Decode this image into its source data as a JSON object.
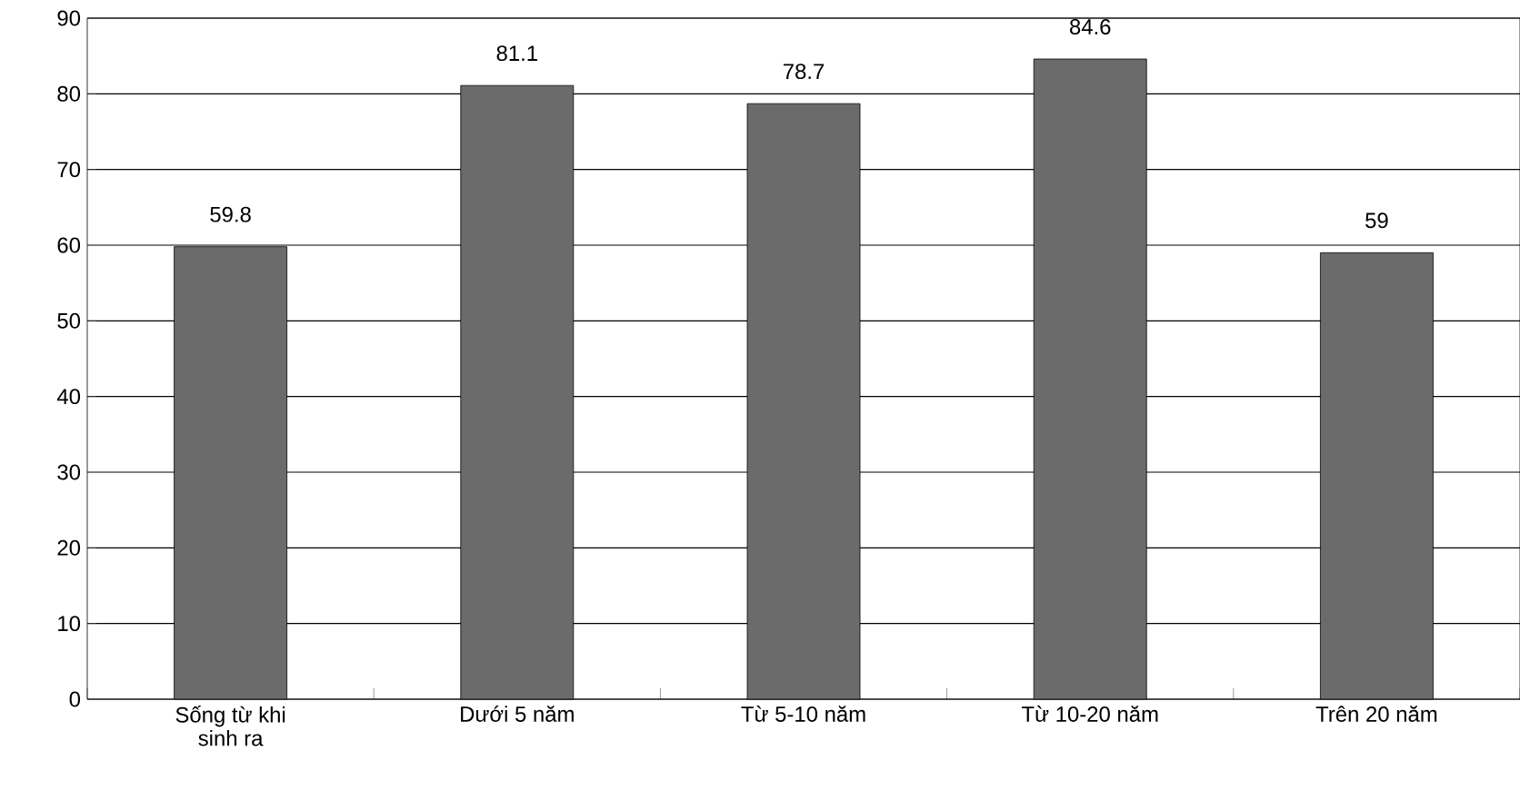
{
  "chart_data": {
    "type": "bar",
    "categories": [
      "Sống từ khi sinh ra",
      "Dưới 5 năm",
      "Từ 5-10 năm",
      "Từ 10-20 năm",
      "Trên 20 năm"
    ],
    "values": [
      59.8,
      81.1,
      78.7,
      84.6,
      59
    ],
    "color": "#6b6b6b",
    "ylim": [
      0,
      90
    ],
    "yticks": [
      0,
      10,
      20,
      30,
      40,
      50,
      60,
      70,
      80,
      90
    ],
    "grid": "y",
    "data_labels": true
  }
}
